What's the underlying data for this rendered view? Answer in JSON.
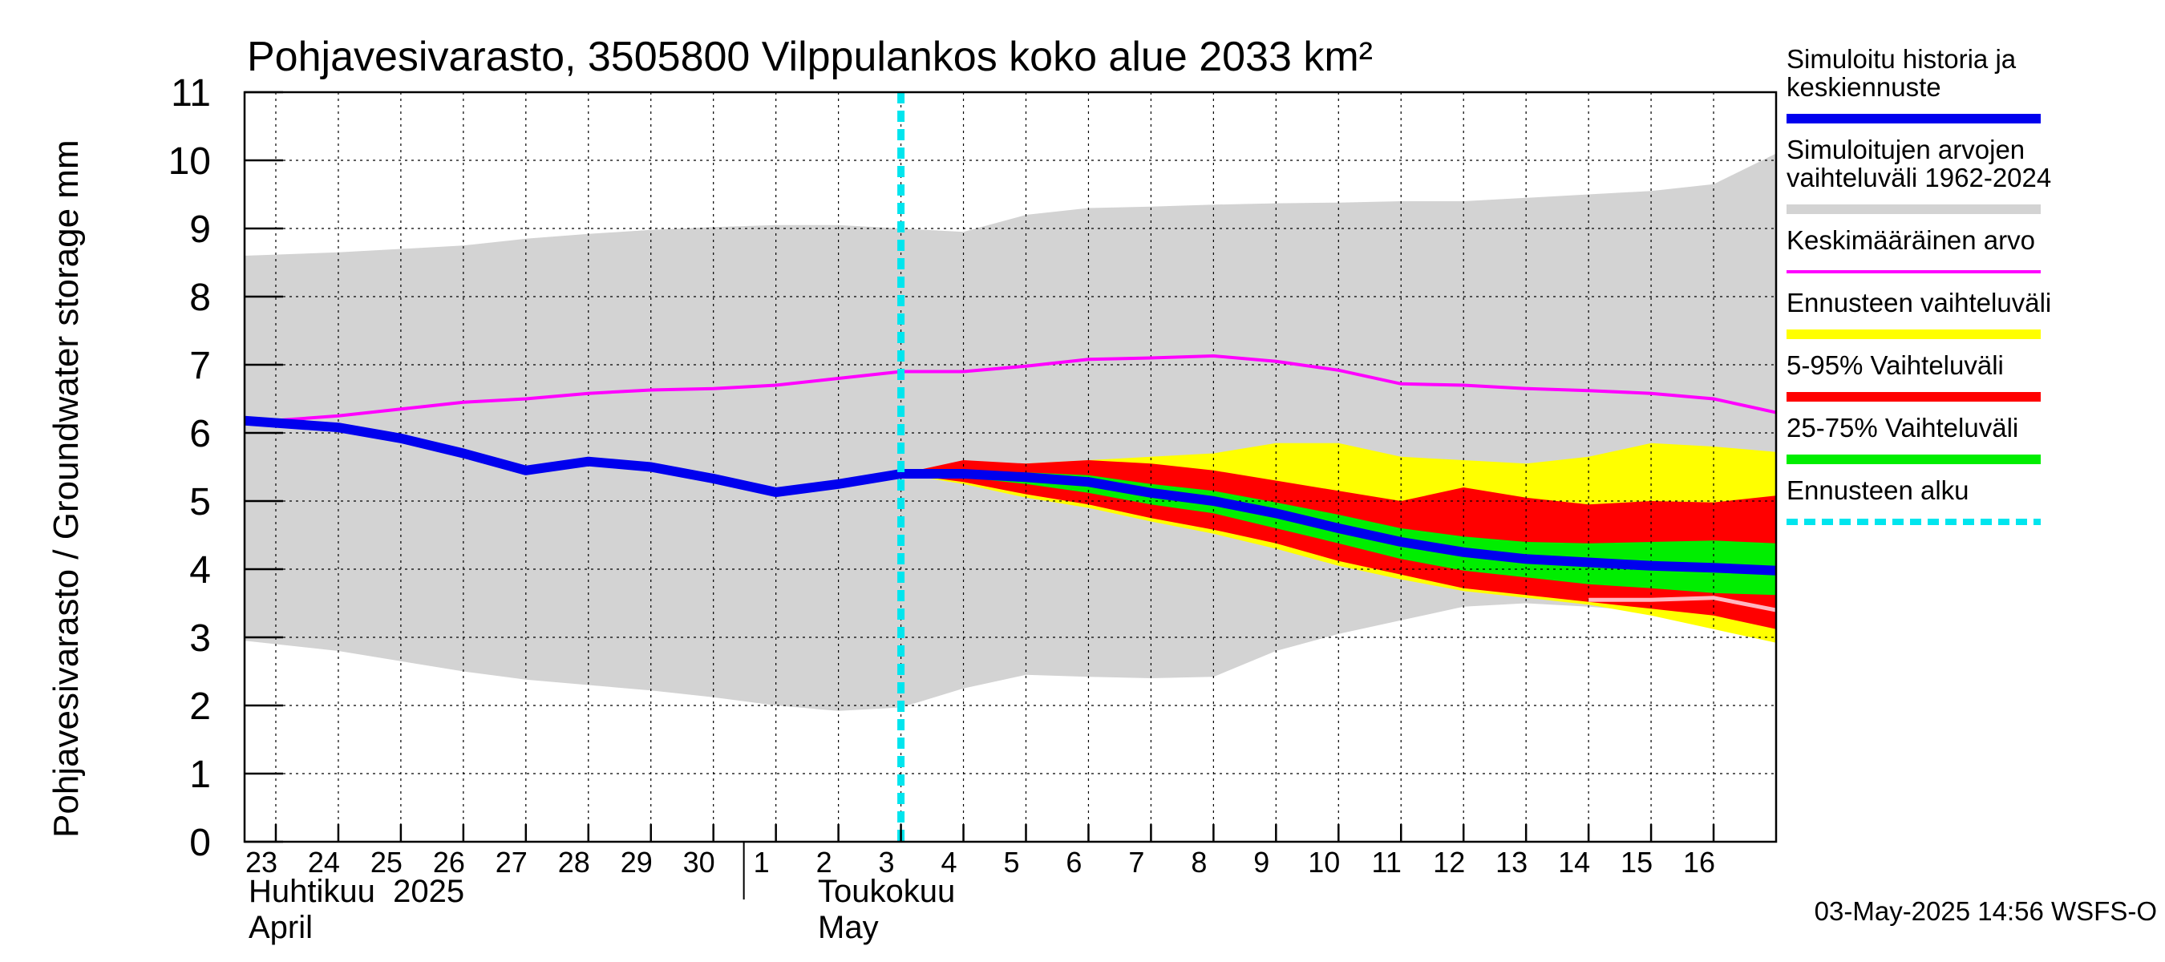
{
  "chart_data": {
    "type": "area",
    "title": "Pohjavesivarasto, 3505800 Vilppulankos koko alue 2033 km²",
    "ylabel": "Pohjavesivarasto / Groundwater storage   mm",
    "ylim": [
      0,
      11
    ],
    "yticks": [
      "0",
      "1",
      "2",
      "3",
      "4",
      "5",
      "6",
      "7",
      "8",
      "9",
      "10",
      "11"
    ],
    "x_start_day": 23,
    "x_end_day": 47,
    "x_tick_labels": [
      "23",
      "24",
      "25",
      "26",
      "27",
      "28",
      "29",
      "30",
      "1",
      "2",
      "3",
      "4",
      "5",
      "6",
      "7",
      "8",
      "9",
      "10",
      "11",
      "12",
      "13",
      "14",
      "15",
      "16"
    ],
    "month_labels": [
      {
        "fi": "Huhtikuu  2025",
        "en": "April"
      },
      {
        "fi": "Toukokuu",
        "en": "May"
      }
    ],
    "month_boundary_day": 31,
    "forecast_start_day": 33,
    "timestamp": "03-May-2025 14:56 WSFS-O",
    "grid": true,
    "colors": {
      "sim_range": "#d3d3d3",
      "mean": "#ff00ff",
      "forecast_range": "#ffff00",
      "p5_95": "#ff0000",
      "p25_75": "#00ee00",
      "median": "#0000ee",
      "forecast_start": "#00e5ee",
      "extra_line": "#ffb6c1"
    },
    "legend": [
      {
        "label": "Simuloitu historia ja keskiennuste",
        "lines": [
          "Simuloitu historia ja",
          "keskiennuste"
        ],
        "color": "#0000ee",
        "style": "thick"
      },
      {
        "label": "Simuloitujen arvojen vaihteluväli 1962-2024",
        "lines": [
          "Simuloitujen arvojen",
          "vaihteluväli 1962-2024"
        ],
        "color": "#d3d3d3",
        "style": "thick"
      },
      {
        "label": "Keskimääräinen arvo",
        "lines": [
          "Keskimääräinen arvo"
        ],
        "color": "#ff00ff",
        "style": "thin"
      },
      {
        "label": "Ennusteen vaihteluväli",
        "lines": [
          "Ennusteen vaihteluväli"
        ],
        "color": "#ffff00",
        "style": "thick"
      },
      {
        "label": "5-95% Vaihteluväli",
        "lines": [
          "5-95% Vaihteluväli"
        ],
        "color": "#ff0000",
        "style": "thick"
      },
      {
        "label": "25-75% Vaihteluväli",
        "lines": [
          "25-75% Vaihteluväli"
        ],
        "color": "#00ee00",
        "style": "thick"
      },
      {
        "label": "Ennusteen alku",
        "lines": [
          "Ennusteen alku"
        ],
        "color": "#00e5ee",
        "style": "dashed"
      }
    ],
    "sim_range": {
      "x": [
        22.5,
        24,
        25,
        26,
        27,
        28,
        29,
        30,
        31,
        32,
        33,
        34,
        35,
        36,
        37,
        38,
        39,
        40,
        41,
        42,
        43,
        44,
        45,
        46,
        47
      ],
      "upper": [
        8.6,
        8.65,
        8.7,
        8.75,
        8.85,
        8.92,
        8.98,
        9.02,
        9.05,
        9.05,
        9.0,
        8.95,
        9.2,
        9.3,
        9.32,
        9.35,
        9.37,
        9.38,
        9.4,
        9.4,
        9.45,
        9.5,
        9.55,
        9.65,
        10.1
      ],
      "lower": [
        2.95,
        2.8,
        2.65,
        2.5,
        2.38,
        2.3,
        2.22,
        2.12,
        2.0,
        1.92,
        1.97,
        2.25,
        2.45,
        2.42,
        2.4,
        2.42,
        2.8,
        3.05,
        3.25,
        3.45,
        3.5,
        3.45,
        3.38,
        3.3,
        3.15
      ]
    },
    "mean": {
      "x": [
        22.5,
        24,
        25,
        26,
        27,
        28,
        29,
        30,
        31,
        32,
        33,
        34,
        35,
        36,
        37,
        38,
        39,
        40,
        41,
        42,
        43,
        44,
        45,
        46,
        47
      ],
      "values": [
        6.15,
        6.25,
        6.35,
        6.45,
        6.5,
        6.58,
        6.63,
        6.65,
        6.7,
        6.8,
        6.9,
        6.9,
        6.98,
        7.08,
        7.1,
        7.13,
        7.05,
        6.92,
        6.72,
        6.7,
        6.65,
        6.62,
        6.58,
        6.5,
        6.3
      ]
    },
    "history": {
      "x": [
        22.5,
        24,
        25,
        26,
        27,
        28,
        29,
        30,
        31,
        32,
        33
      ],
      "values": [
        6.18,
        6.08,
        5.92,
        5.7,
        5.45,
        5.58,
        5.5,
        5.33,
        5.13,
        5.25,
        5.4
      ]
    },
    "forecast": {
      "x": [
        33,
        34,
        35,
        36,
        37,
        38,
        39,
        40,
        41,
        42,
        43,
        44,
        45,
        46,
        47
      ],
      "max": [
        5.4,
        5.55,
        5.55,
        5.6,
        5.65,
        5.7,
        5.85,
        5.85,
        5.65,
        5.6,
        5.55,
        5.65,
        5.85,
        5.8,
        5.72
      ],
      "p95": [
        5.4,
        5.6,
        5.55,
        5.6,
        5.55,
        5.45,
        5.3,
        5.15,
        5.0,
        5.2,
        5.05,
        4.95,
        5.0,
        4.98,
        5.08
      ],
      "p75": [
        5.4,
        5.45,
        5.42,
        5.38,
        5.25,
        5.15,
        4.98,
        4.8,
        4.6,
        4.48,
        4.4,
        4.38,
        4.4,
        4.42,
        4.38
      ],
      "median": [
        5.4,
        5.4,
        5.35,
        5.28,
        5.12,
        5.0,
        4.82,
        4.6,
        4.4,
        4.25,
        4.15,
        4.1,
        4.05,
        4.02,
        3.98
      ],
      "p25": [
        5.4,
        5.35,
        5.25,
        5.12,
        4.95,
        4.82,
        4.6,
        4.38,
        4.15,
        3.98,
        3.88,
        3.78,
        3.72,
        3.65,
        3.62
      ],
      "p5": [
        5.4,
        5.28,
        5.1,
        4.95,
        4.75,
        4.58,
        4.38,
        4.12,
        3.92,
        3.72,
        3.62,
        3.52,
        3.42,
        3.32,
        3.12
      ],
      "min": [
        5.4,
        5.25,
        5.05,
        4.9,
        4.7,
        4.52,
        4.3,
        4.05,
        3.85,
        3.68,
        3.58,
        3.48,
        3.32,
        3.12,
        2.92
      ],
      "extra": [
        null,
        null,
        null,
        null,
        null,
        null,
        null,
        null,
        null,
        null,
        null,
        3.55,
        3.55,
        3.58,
        3.4
      ]
    }
  }
}
